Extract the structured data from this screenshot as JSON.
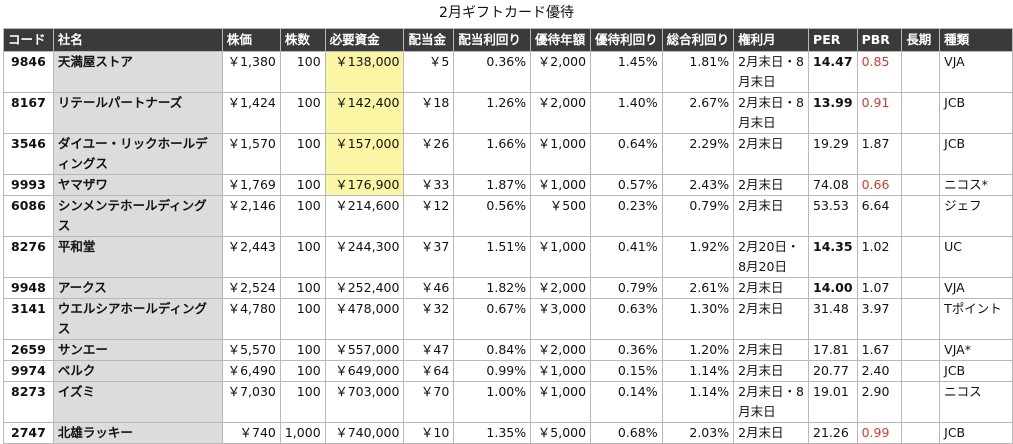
{
  "title": "2月ギフトカード優待",
  "headers": [
    "コード",
    "社名",
    "株価",
    "株数",
    "必要資金",
    "配当金",
    "配当利回り",
    "優待年額",
    "優待利回り",
    "総合利回り",
    "権利月",
    "PER",
    "PBR",
    "長期",
    "種類"
  ],
  "rows": [
    {
      "code": "9846",
      "name": "天満屋ストア",
      "price": "￥1,380",
      "shares": "100",
      "funds": "￥138,000",
      "div": "￥5",
      "div_yield": "0.36%",
      "benefit": "￥2,000",
      "benefit_yield": "1.45%",
      "total_yield": "1.81%",
      "month": "2月末日・8月末日",
      "per": "14.47",
      "pbr": "0.85",
      "long": "",
      "type": "VJA",
      "hl": true,
      "per_bold": true,
      "pbr_red": true
    },
    {
      "code": "8167",
      "name": "リテールパートナーズ",
      "price": "￥1,424",
      "shares": "100",
      "funds": "￥142,400",
      "div": "￥18",
      "div_yield": "1.26%",
      "benefit": "￥2,000",
      "benefit_yield": "1.40%",
      "total_yield": "2.67%",
      "month": "2月末日・8月末日",
      "per": "13.99",
      "pbr": "0.91",
      "long": "",
      "type": "JCB",
      "hl": true,
      "per_bold": true,
      "pbr_red": true
    },
    {
      "code": "3546",
      "name": "ダイユー・リックホールディングス",
      "price": "￥1,570",
      "shares": "100",
      "funds": "￥157,000",
      "div": "￥26",
      "div_yield": "1.66%",
      "benefit": "￥1,000",
      "benefit_yield": "0.64%",
      "total_yield": "2.29%",
      "month": "2月末日",
      "per": "19.29",
      "pbr": "1.87",
      "long": "",
      "type": "JCB",
      "hl": true,
      "per_bold": false,
      "pbr_red": false
    },
    {
      "code": "9993",
      "name": "ヤマザワ",
      "price": "￥1,769",
      "shares": "100",
      "funds": "￥176,900",
      "div": "￥33",
      "div_yield": "1.87%",
      "benefit": "￥1,000",
      "benefit_yield": "0.57%",
      "total_yield": "2.43%",
      "month": "2月末日",
      "per": "74.08",
      "pbr": "0.66",
      "long": "",
      "type": "ニコス*",
      "hl": true,
      "per_bold": false,
      "pbr_red": true
    },
    {
      "code": "6086",
      "name": "シンメンテホールディングス",
      "price": "￥2,146",
      "shares": "100",
      "funds": "￥214,600",
      "div": "￥12",
      "div_yield": "0.56%",
      "benefit": "￥500",
      "benefit_yield": "0.23%",
      "total_yield": "0.79%",
      "month": "2月末日",
      "per": "53.53",
      "pbr": "6.64",
      "long": "",
      "type": "ジェフ",
      "hl": false,
      "per_bold": false,
      "pbr_red": false
    },
    {
      "code": "8276",
      "name": "平和堂",
      "price": "￥2,443",
      "shares": "100",
      "funds": "￥244,300",
      "div": "￥37",
      "div_yield": "1.51%",
      "benefit": "￥1,000",
      "benefit_yield": "0.41%",
      "total_yield": "1.92%",
      "month": "2月20日・8月20日",
      "per": "14.35",
      "pbr": "1.02",
      "long": "",
      "type": "UC",
      "hl": false,
      "per_bold": true,
      "pbr_red": false
    },
    {
      "code": "9948",
      "name": "アークス",
      "price": "￥2,524",
      "shares": "100",
      "funds": "￥252,400",
      "div": "￥46",
      "div_yield": "1.82%",
      "benefit": "￥2,000",
      "benefit_yield": "0.79%",
      "total_yield": "2.61%",
      "month": "2月末日",
      "per": "14.00",
      "pbr": "1.07",
      "long": "",
      "type": "VJA",
      "hl": false,
      "per_bold": true,
      "pbr_red": false
    },
    {
      "code": "3141",
      "name": "ウエルシアホールディングス",
      "price": "￥4,780",
      "shares": "100",
      "funds": "￥478,000",
      "div": "￥32",
      "div_yield": "0.67%",
      "benefit": "￥3,000",
      "benefit_yield": "0.63%",
      "total_yield": "1.30%",
      "month": "2月末日",
      "per": "31.48",
      "pbr": "3.97",
      "long": "",
      "type": "Tポイント",
      "hl": false,
      "per_bold": false,
      "pbr_red": false
    },
    {
      "code": "2659",
      "name": "サンエー",
      "price": "￥5,570",
      "shares": "100",
      "funds": "￥557,000",
      "div": "￥47",
      "div_yield": "0.84%",
      "benefit": "￥2,000",
      "benefit_yield": "0.36%",
      "total_yield": "1.20%",
      "month": "2月末日",
      "per": "17.81",
      "pbr": "1.67",
      "long": "",
      "type": "VJA*",
      "hl": false,
      "per_bold": false,
      "pbr_red": false
    },
    {
      "code": "9974",
      "name": "ベルク",
      "price": "￥6,490",
      "shares": "100",
      "funds": "￥649,000",
      "div": "￥64",
      "div_yield": "0.99%",
      "benefit": "￥1,000",
      "benefit_yield": "0.15%",
      "total_yield": "1.14%",
      "month": "2月末日",
      "per": "20.77",
      "pbr": "2.40",
      "long": "",
      "type": "JCB",
      "hl": false,
      "per_bold": false,
      "pbr_red": false
    },
    {
      "code": "8273",
      "name": "イズミ",
      "price": "￥7,030",
      "shares": "100",
      "funds": "￥703,000",
      "div": "￥70",
      "div_yield": "1.00%",
      "benefit": "￥1,000",
      "benefit_yield": "0.14%",
      "total_yield": "1.14%",
      "month": "2月末日・8月末日",
      "per": "19.01",
      "pbr": "2.90",
      "long": "",
      "type": "ニコス",
      "hl": false,
      "per_bold": false,
      "pbr_red": false
    },
    {
      "code": "2747",
      "name": "北雄ラッキー",
      "price": "￥740",
      "shares": "1,000",
      "funds": "￥740,000",
      "div": "￥10",
      "div_yield": "1.35%",
      "benefit": "￥5,000",
      "benefit_yield": "0.68%",
      "total_yield": "2.03%",
      "month": "2月末日",
      "per": "21.26",
      "pbr": "0.99",
      "long": "",
      "type": "JCB",
      "hl": false,
      "per_bold": false,
      "pbr_red": true
    }
  ]
}
